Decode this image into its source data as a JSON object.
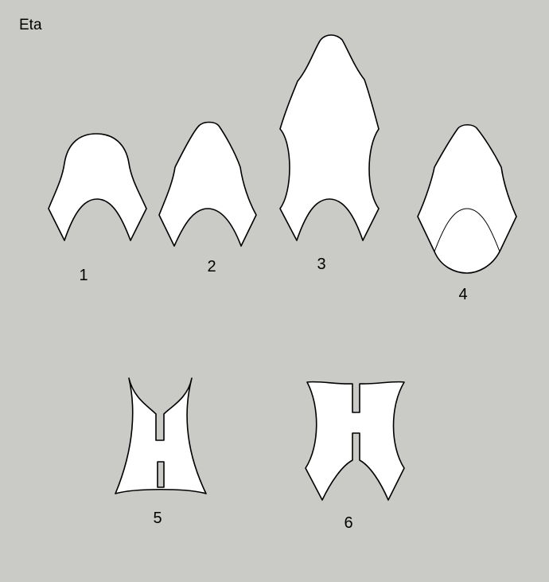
{
  "title": "Eta",
  "figures": [
    {
      "id": "1",
      "label": "1"
    },
    {
      "id": "2",
      "label": "2"
    },
    {
      "id": "3",
      "label": "3"
    },
    {
      "id": "4",
      "label": "4"
    },
    {
      "id": "5",
      "label": "5"
    },
    {
      "id": "6",
      "label": "6"
    }
  ],
  "colors": {
    "background": "#cacac6",
    "shape_fill": "#ffffff",
    "outline": "#000000"
  }
}
